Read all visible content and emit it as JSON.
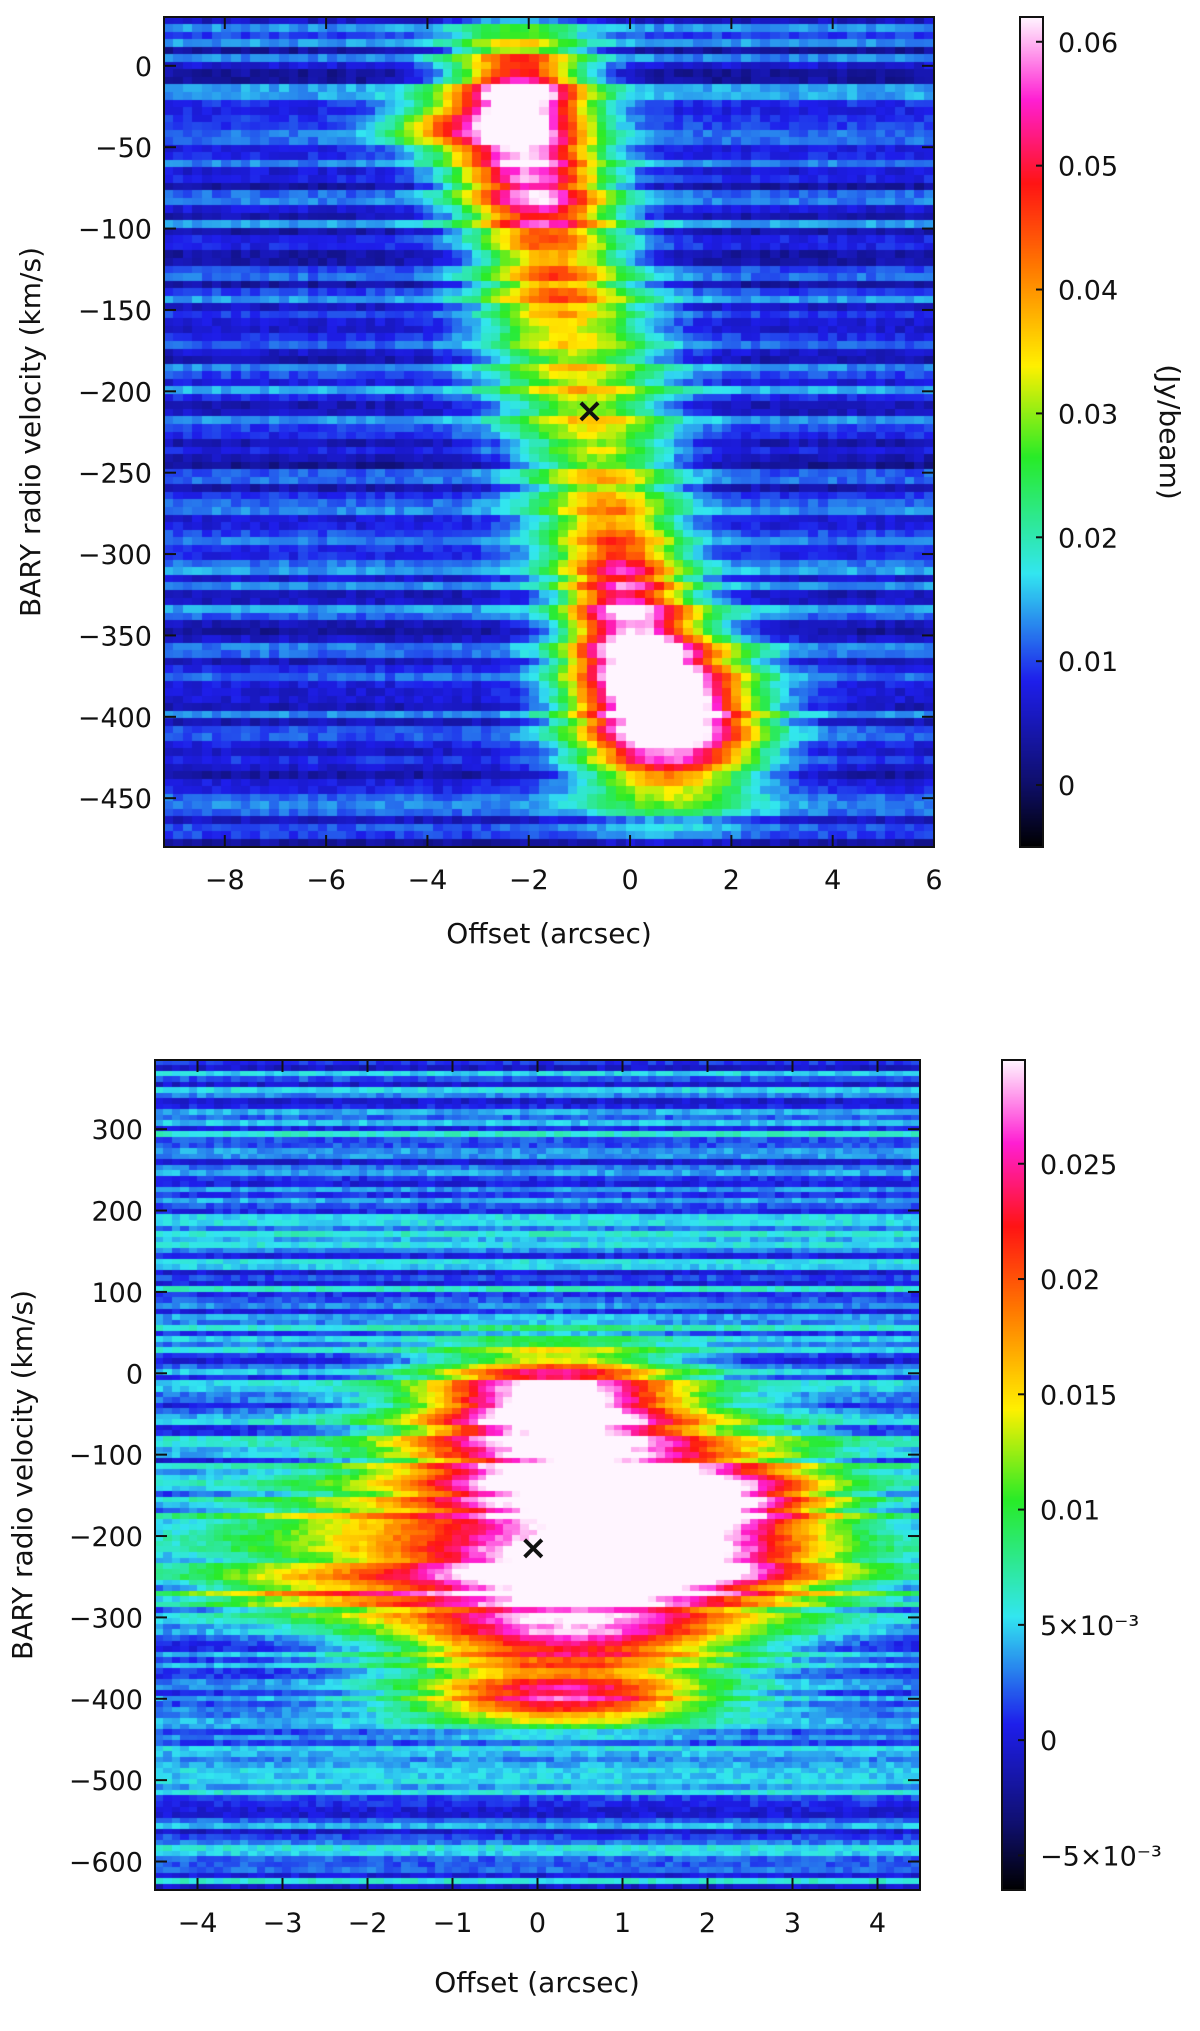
{
  "chart_data": [
    {
      "type": "heatmap",
      "xlabel": "Offset (arcsec)",
      "ylabel": "BARY radio velocity (km/s)",
      "colorbar_label": "(Jy/beam)",
      "xlim": [
        -9.2,
        6.0
      ],
      "ylim": [
        30,
        -480
      ],
      "x_ticks": [
        -8,
        -6,
        -4,
        -2,
        0,
        2,
        4,
        6
      ],
      "x_tick_labels": [
        "−8",
        "−6",
        "−4",
        "−2",
        "0",
        "2",
        "4",
        "6"
      ],
      "y_ticks": [
        -450,
        -400,
        -350,
        -300,
        -250,
        -200,
        -150,
        -100,
        -50,
        0
      ],
      "y_tick_labels": [
        "−450",
        "−400",
        "−350",
        "−300",
        "−250",
        "−200",
        "−150",
        "−100",
        "−50",
        "0"
      ],
      "colorbar_range": [
        -0.005,
        0.062
      ],
      "colorbar_ticks": [
        0,
        0.01,
        0.02,
        0.03,
        0.04,
        0.05,
        0.06
      ],
      "colorbar_tick_labels": [
        "0",
        "0.01",
        "0.02",
        "0.03",
        "0.04",
        "0.05",
        "0.06"
      ],
      "components": [
        {
          "x": 0.8,
          "y": -405,
          "sx": 1.2,
          "sy": 30,
          "amp": 0.062
        },
        {
          "x": 0.3,
          "y": -365,
          "sx": 1.0,
          "sy": 25,
          "amp": 0.033
        },
        {
          "x": -0.1,
          "y": -325,
          "sx": 0.8,
          "sy": 30,
          "amp": 0.031
        },
        {
          "x": -0.5,
          "y": -265,
          "sx": 1.0,
          "sy": 40,
          "amp": 0.022
        },
        {
          "x": -1.1,
          "y": -185,
          "sx": 1.2,
          "sy": 40,
          "amp": 0.02
        },
        {
          "x": -1.5,
          "y": -130,
          "sx": 1.0,
          "sy": 25,
          "amp": 0.024
        },
        {
          "x": -1.7,
          "y": -85,
          "sx": 1.0,
          "sy": 20,
          "amp": 0.026
        },
        {
          "x": -2.1,
          "y": -50,
          "sx": 1.0,
          "sy": 30,
          "amp": 0.035
        },
        {
          "x": -2.2,
          "y": -15,
          "sx": 0.9,
          "sy": 25,
          "amp": 0.038
        },
        {
          "x": -3.8,
          "y": -38,
          "sx": 0.8,
          "sy": 10,
          "amp": 0.02
        }
      ],
      "marker": {
        "x": -0.8,
        "y": -212,
        "symbol": "×"
      }
    },
    {
      "type": "heatmap",
      "xlabel": "Offset (arcsec)",
      "ylabel": "BARY radio velocity (km/s)",
      "colorbar_label": "",
      "xlim": [
        -4.5,
        4.5
      ],
      "ylim": [
        385,
        -635
      ],
      "x_ticks": [
        -4,
        -3,
        -2,
        -1,
        0,
        1,
        2,
        3,
        4
      ],
      "x_tick_labels": [
        "−4",
        "−3",
        "−2",
        "−1",
        "0",
        "1",
        "2",
        "3",
        "4"
      ],
      "y_ticks": [
        -600,
        -500,
        -400,
        -300,
        -200,
        -100,
        0,
        100,
        200,
        300
      ],
      "y_tick_labels": [
        "−600",
        "−500",
        "−400",
        "−300",
        "−200",
        "−100",
        "0",
        "100",
        "200",
        "300"
      ],
      "colorbar_range": [
        -0.0065,
        0.0295
      ],
      "colorbar_ticks": [
        -0.005,
        0,
        0.005,
        0.01,
        0.015,
        0.02,
        0.025
      ],
      "colorbar_tick_labels": [
        "−5×10⁻³",
        "0",
        "5×10⁻³",
        "0.01",
        "0.015",
        "0.02",
        "0.025"
      ],
      "components": [
        {
          "x": 0.3,
          "y": -400,
          "sx": 1.2,
          "sy": 22,
          "amp": 0.022
        },
        {
          "x": 0.4,
          "y": -330,
          "sx": 1.4,
          "sy": 30,
          "amp": 0.021
        },
        {
          "x": 0.6,
          "y": -270,
          "sx": 1.8,
          "sy": 30,
          "amp": 0.016
        },
        {
          "x": 1.2,
          "y": -235,
          "sx": 1.4,
          "sy": 25,
          "amp": 0.02
        },
        {
          "x": -0.3,
          "y": -240,
          "sx": 2.2,
          "sy": 45,
          "amp": 0.01
        },
        {
          "x": 1.7,
          "y": -160,
          "sx": 1.2,
          "sy": 35,
          "amp": 0.028
        },
        {
          "x": -0.8,
          "y": -175,
          "sx": 2.0,
          "sy": 30,
          "amp": 0.011
        },
        {
          "x": 0.2,
          "y": -130,
          "sx": 1.3,
          "sy": 30,
          "amp": 0.018
        },
        {
          "x": 0.2,
          "y": -30,
          "sx": 1.0,
          "sy": 40,
          "amp": 0.027
        },
        {
          "x": 0.5,
          "y": -75,
          "sx": 1.6,
          "sy": 30,
          "amp": 0.013
        },
        {
          "x": -2.8,
          "y": -270,
          "sx": 1.0,
          "sy": 20,
          "amp": 0.006
        }
      ],
      "marker": {
        "x": -0.05,
        "y": -215,
        "symbol": "×"
      }
    }
  ]
}
